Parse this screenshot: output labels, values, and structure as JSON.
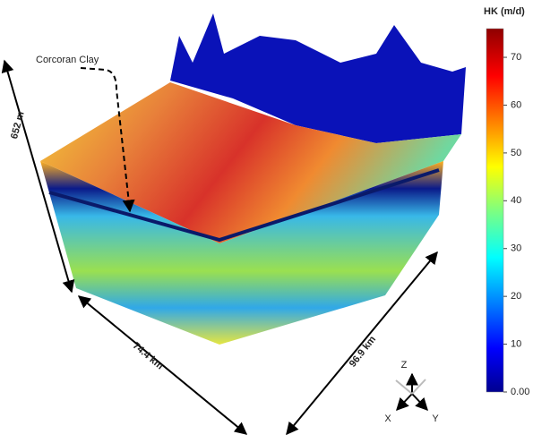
{
  "annotations": {
    "clay_label": "Corcoran Clay",
    "depth": "652 m",
    "width": "74.4 km",
    "length": "96.9 km"
  },
  "axes_glyph": {
    "z": "Z",
    "x": "X",
    "y": "Y"
  },
  "colorbar": {
    "title": "HK (m/d)",
    "lim": [
      0,
      76
    ],
    "ticks": [
      {
        "value": 0,
        "label": "0.00"
      },
      10,
      20,
      30,
      40,
      50,
      60,
      70
    ]
  }
}
